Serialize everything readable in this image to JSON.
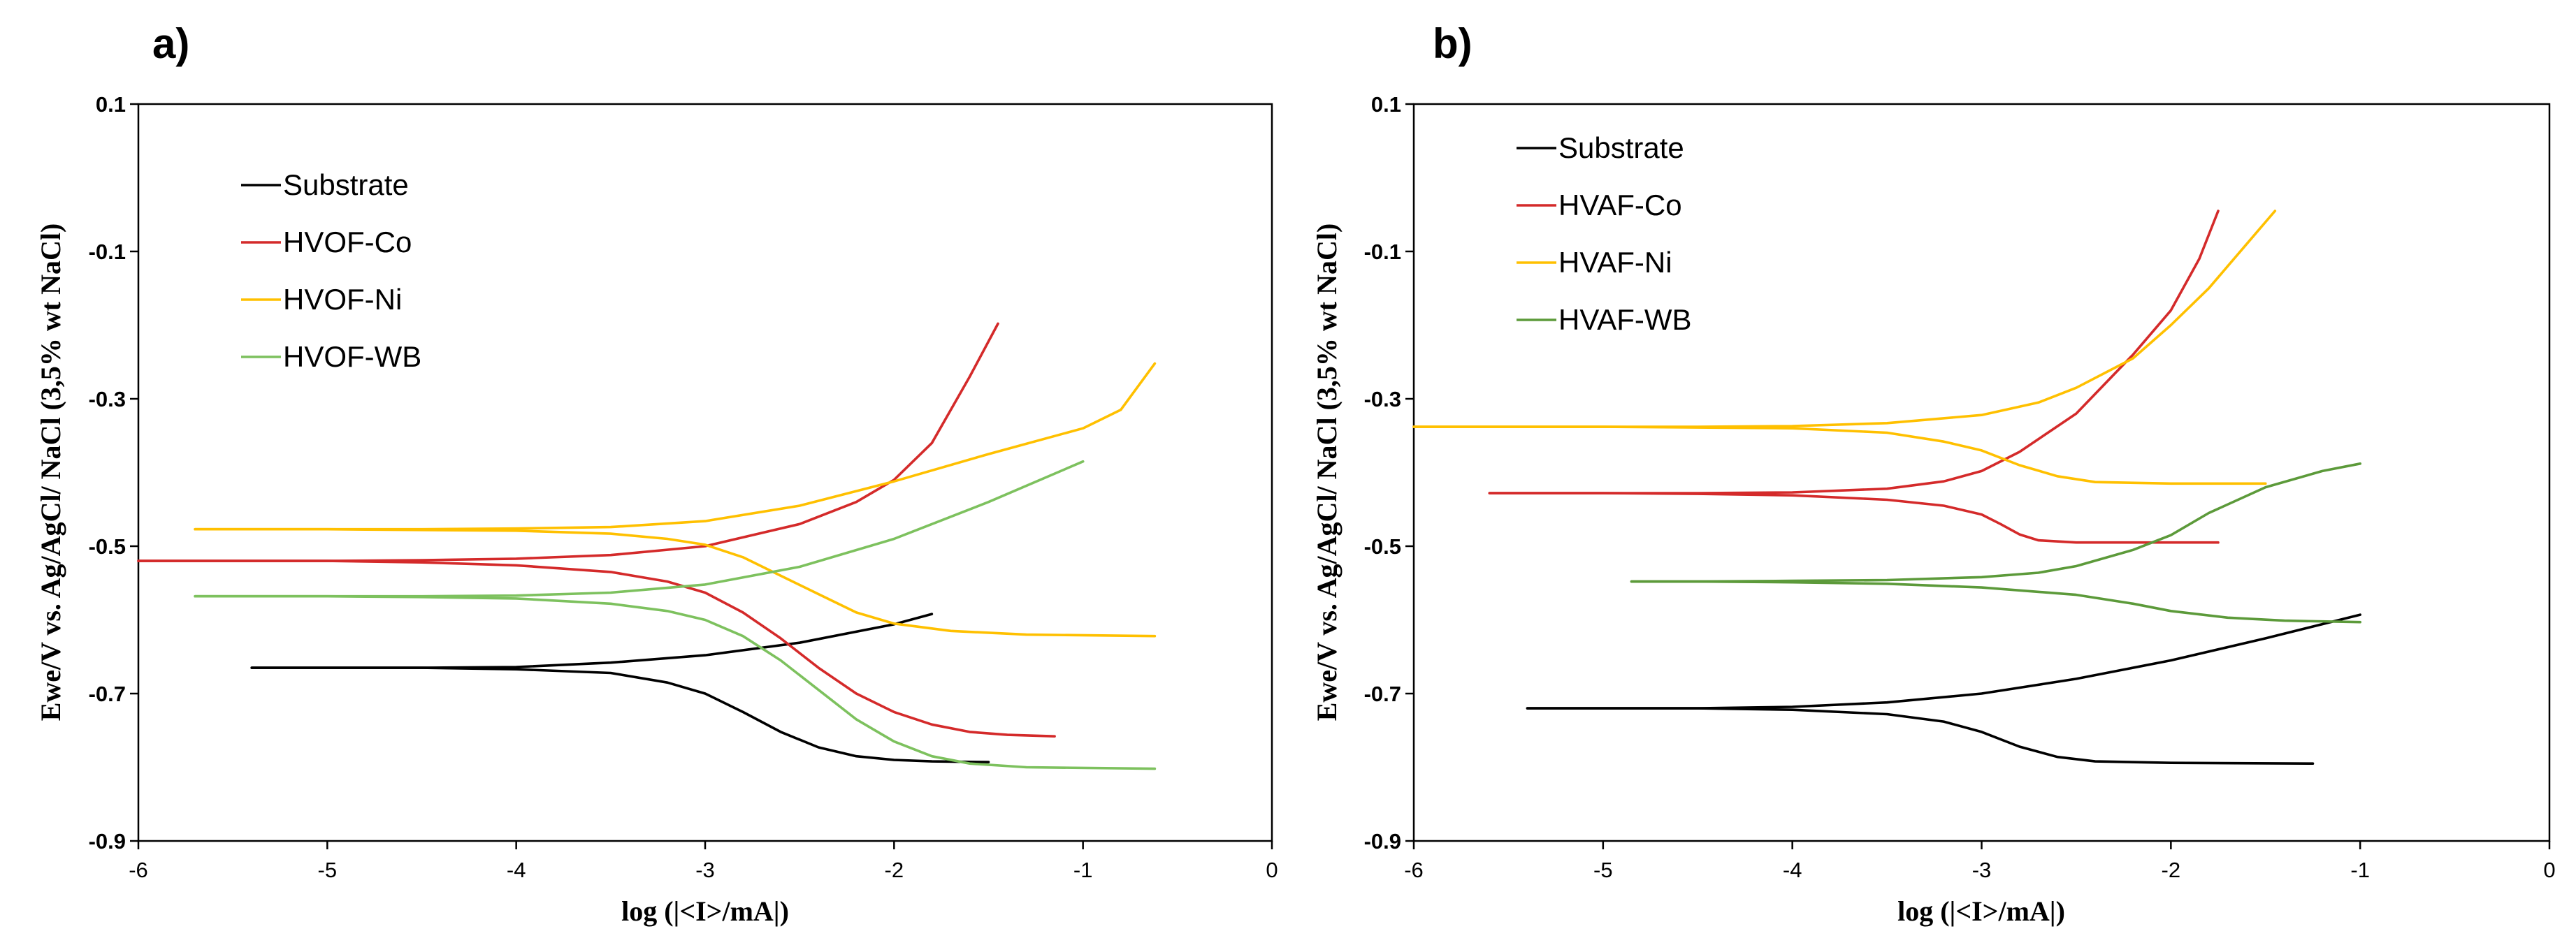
{
  "chart_data": [
    {
      "type": "line",
      "panel_label": "a)",
      "xlabel": "log (|<I>/mA|)",
      "ylabel": "Ewe/V vs. Ag/AgCl/ NaCl (3,5% wt NaCl)",
      "xlim": [
        -6,
        0
      ],
      "ylim": [
        -0.9,
        0.1
      ],
      "x_ticks": [
        "-6",
        "-5",
        "-4",
        "-3",
        "-2",
        "-1",
        "0"
      ],
      "y_ticks": [
        "0.1",
        "-0.1",
        "-0.3",
        "-0.5",
        "-0.7",
        "-0.9"
      ],
      "grid": false,
      "legend_position": "top-left",
      "series": [
        {
          "name": "Substrate",
          "color": "#000000",
          "branches": [
            [
              [
                -5.4,
                -0.665
              ],
              [
                -4.5,
                -0.665
              ],
              [
                -4.0,
                -0.664
              ],
              [
                -3.5,
                -0.658
              ],
              [
                -3.0,
                -0.648
              ],
              [
                -2.5,
                -0.631
              ],
              [
                -2.0,
                -0.606
              ],
              [
                -1.8,
                -0.592
              ]
            ],
            [
              [
                -5.4,
                -0.665
              ],
              [
                -4.5,
                -0.665
              ],
              [
                -4.0,
                -0.667
              ],
              [
                -3.5,
                -0.672
              ],
              [
                -3.2,
                -0.685
              ],
              [
                -3.0,
                -0.7
              ],
              [
                -2.8,
                -0.725
              ],
              [
                -2.6,
                -0.752
              ],
              [
                -2.4,
                -0.773
              ],
              [
                -2.2,
                -0.785
              ],
              [
                -2.0,
                -0.79
              ],
              [
                -1.8,
                -0.792
              ],
              [
                -1.5,
                -0.793
              ]
            ]
          ]
        },
        {
          "name": "HVOF-Co",
          "color": "#d42a2a",
          "branches": [
            [
              [
                -6.0,
                -0.52
              ],
              [
                -5.0,
                -0.52
              ],
              [
                -4.5,
                -0.519
              ],
              [
                -4.0,
                -0.517
              ],
              [
                -3.5,
                -0.512
              ],
              [
                -3.0,
                -0.5
              ],
              [
                -2.5,
                -0.47
              ],
              [
                -2.2,
                -0.44
              ],
              [
                -2.0,
                -0.41
              ],
              [
                -1.8,
                -0.36
              ],
              [
                -1.6,
                -0.27
              ],
              [
                -1.45,
                -0.198
              ]
            ],
            [
              [
                -6.0,
                -0.52
              ],
              [
                -5.0,
                -0.52
              ],
              [
                -4.5,
                -0.522
              ],
              [
                -4.0,
                -0.526
              ],
              [
                -3.5,
                -0.535
              ],
              [
                -3.2,
                -0.548
              ],
              [
                -3.0,
                -0.563
              ],
              [
                -2.8,
                -0.59
              ],
              [
                -2.6,
                -0.625
              ],
              [
                -2.4,
                -0.665
              ],
              [
                -2.2,
                -0.7
              ],
              [
                -2.0,
                -0.725
              ],
              [
                -1.8,
                -0.742
              ],
              [
                -1.6,
                -0.752
              ],
              [
                -1.4,
                -0.756
              ],
              [
                -1.15,
                -0.758
              ]
            ]
          ]
        },
        {
          "name": "HVOF-Ni",
          "color": "#ffc000",
          "branches": [
            [
              [
                -5.7,
                -0.477
              ],
              [
                -5.0,
                -0.477
              ],
              [
                -4.5,
                -0.477
              ],
              [
                -4.0,
                -0.476
              ],
              [
                -3.5,
                -0.474
              ],
              [
                -3.0,
                -0.466
              ],
              [
                -2.5,
                -0.445
              ],
              [
                -2.0,
                -0.412
              ],
              [
                -1.5,
                -0.375
              ],
              [
                -1.0,
                -0.34
              ],
              [
                -0.8,
                -0.315
              ],
              [
                -0.62,
                -0.252
              ]
            ],
            [
              [
                -5.7,
                -0.477
              ],
              [
                -5.0,
                -0.477
              ],
              [
                -4.5,
                -0.478
              ],
              [
                -4.0,
                -0.479
              ],
              [
                -3.5,
                -0.483
              ],
              [
                -3.2,
                -0.49
              ],
              [
                -3.0,
                -0.498
              ],
              [
                -2.8,
                -0.515
              ],
              [
                -2.6,
                -0.54
              ],
              [
                -2.4,
                -0.565
              ],
              [
                -2.2,
                -0.59
              ],
              [
                -2.0,
                -0.605
              ],
              [
                -1.7,
                -0.615
              ],
              [
                -1.3,
                -0.62
              ],
              [
                -0.62,
                -0.622
              ]
            ]
          ]
        },
        {
          "name": "HVOF-WB",
          "color": "#7dc15e",
          "branches": [
            [
              [
                -5.7,
                -0.568
              ],
              [
                -5.0,
                -0.568
              ],
              [
                -4.5,
                -0.568
              ],
              [
                -4.0,
                -0.567
              ],
              [
                -3.5,
                -0.563
              ],
              [
                -3.0,
                -0.552
              ],
              [
                -2.5,
                -0.528
              ],
              [
                -2.0,
                -0.49
              ],
              [
                -1.5,
                -0.44
              ],
              [
                -1.0,
                -0.385
              ]
            ],
            [
              [
                -5.7,
                -0.568
              ],
              [
                -5.0,
                -0.568
              ],
              [
                -4.5,
                -0.569
              ],
              [
                -4.0,
                -0.571
              ],
              [
                -3.5,
                -0.578
              ],
              [
                -3.2,
                -0.588
              ],
              [
                -3.0,
                -0.6
              ],
              [
                -2.8,
                -0.622
              ],
              [
                -2.6,
                -0.655
              ],
              [
                -2.4,
                -0.695
              ],
              [
                -2.2,
                -0.735
              ],
              [
                -2.0,
                -0.765
              ],
              [
                -1.8,
                -0.785
              ],
              [
                -1.6,
                -0.795
              ],
              [
                -1.3,
                -0.8
              ],
              [
                -0.62,
                -0.802
              ]
            ]
          ]
        }
      ]
    },
    {
      "type": "line",
      "panel_label": "b)",
      "xlabel": "log (|<I>/mA|)",
      "ylabel": "Ewe/V vs. Ag/AgCl/ NaCl (3,5% wt NaCl)",
      "xlim": [
        -6,
        0
      ],
      "ylim": [
        -0.9,
        0.1
      ],
      "x_ticks": [
        "-6",
        "-5",
        "-4",
        "-3",
        "-2",
        "-1",
        "0"
      ],
      "y_ticks": [
        "0.1",
        "-0.1",
        "-0.3",
        "-0.5",
        "-0.7",
        "-0.9"
      ],
      "grid": false,
      "legend_position": "top-left",
      "series": [
        {
          "name": "Substrate",
          "color": "#000000",
          "branches": [
            [
              [
                -5.4,
                -0.72
              ],
              [
                -4.5,
                -0.72
              ],
              [
                -4.0,
                -0.718
              ],
              [
                -3.5,
                -0.712
              ],
              [
                -3.0,
                -0.7
              ],
              [
                -2.5,
                -0.68
              ],
              [
                -2.0,
                -0.655
              ],
              [
                -1.5,
                -0.625
              ],
              [
                -1.0,
                -0.593
              ]
            ],
            [
              [
                -5.4,
                -0.72
              ],
              [
                -4.5,
                -0.72
              ],
              [
                -4.0,
                -0.722
              ],
              [
                -3.5,
                -0.728
              ],
              [
                -3.2,
                -0.738
              ],
              [
                -3.0,
                -0.752
              ],
              [
                -2.8,
                -0.772
              ],
              [
                -2.6,
                -0.786
              ],
              [
                -2.4,
                -0.792
              ],
              [
                -2.0,
                -0.794
              ],
              [
                -1.25,
                -0.795
              ]
            ]
          ]
        },
        {
          "name": "HVAF-Co",
          "color": "#d42a2a",
          "branches": [
            [
              [
                -5.6,
                -0.428
              ],
              [
                -5.0,
                -0.428
              ],
              [
                -4.5,
                -0.428
              ],
              [
                -4.0,
                -0.427
              ],
              [
                -3.5,
                -0.422
              ],
              [
                -3.2,
                -0.412
              ],
              [
                -3.0,
                -0.398
              ],
              [
                -2.8,
                -0.372
              ],
              [
                -2.5,
                -0.32
              ],
              [
                -2.2,
                -0.24
              ],
              [
                -2.0,
                -0.18
              ],
              [
                -1.85,
                -0.11
              ],
              [
                -1.75,
                -0.045
              ]
            ],
            [
              [
                -5.6,
                -0.428
              ],
              [
                -5.0,
                -0.428
              ],
              [
                -4.5,
                -0.429
              ],
              [
                -4.0,
                -0.431
              ],
              [
                -3.5,
                -0.437
              ],
              [
                -3.2,
                -0.445
              ],
              [
                -3.0,
                -0.457
              ],
              [
                -2.9,
                -0.47
              ],
              [
                -2.8,
                -0.484
              ],
              [
                -2.7,
                -0.492
              ],
              [
                -2.5,
                -0.495
              ],
              [
                -2.2,
                -0.495
              ],
              [
                -1.75,
                -0.495
              ]
            ]
          ]
        },
        {
          "name": "HVAF-Ni",
          "color": "#ffc000",
          "branches": [
            [
              [
                -6.0,
                -0.338
              ],
              [
                -5.0,
                -0.338
              ],
              [
                -4.5,
                -0.338
              ],
              [
                -4.0,
                -0.337
              ],
              [
                -3.5,
                -0.333
              ],
              [
                -3.0,
                -0.322
              ],
              [
                -2.7,
                -0.305
              ],
              [
                -2.5,
                -0.285
              ],
              [
                -2.2,
                -0.245
              ],
              [
                -2.0,
                -0.2
              ],
              [
                -1.8,
                -0.15
              ],
              [
                -1.6,
                -0.09
              ],
              [
                -1.45,
                -0.045
              ]
            ],
            [
              [
                -6.0,
                -0.338
              ],
              [
                -5.0,
                -0.338
              ],
              [
                -4.5,
                -0.339
              ],
              [
                -4.0,
                -0.34
              ],
              [
                -3.5,
                -0.346
              ],
              [
                -3.2,
                -0.358
              ],
              [
                -3.0,
                -0.37
              ],
              [
                -2.8,
                -0.39
              ],
              [
                -2.6,
                -0.405
              ],
              [
                -2.4,
                -0.413
              ],
              [
                -2.0,
                -0.415
              ],
              [
                -1.5,
                -0.415
              ]
            ]
          ]
        },
        {
          "name": "HVAF-WB",
          "color": "#5c9a3a",
          "branches": [
            [
              [
                -4.85,
                -0.548
              ],
              [
                -4.5,
                -0.548
              ],
              [
                -4.0,
                -0.547
              ],
              [
                -3.5,
                -0.546
              ],
              [
                -3.0,
                -0.542
              ],
              [
                -2.7,
                -0.536
              ],
              [
                -2.5,
                -0.527
              ],
              [
                -2.2,
                -0.505
              ],
              [
                -2.0,
                -0.485
              ],
              [
                -1.8,
                -0.455
              ],
              [
                -1.5,
                -0.42
              ],
              [
                -1.2,
                -0.398
              ],
              [
                -1.0,
                -0.388
              ]
            ],
            [
              [
                -4.85,
                -0.548
              ],
              [
                -4.5,
                -0.548
              ],
              [
                -4.0,
                -0.549
              ],
              [
                -3.5,
                -0.551
              ],
              [
                -3.0,
                -0.556
              ],
              [
                -2.5,
                -0.566
              ],
              [
                -2.2,
                -0.578
              ],
              [
                -2.0,
                -0.588
              ],
              [
                -1.7,
                -0.597
              ],
              [
                -1.4,
                -0.601
              ],
              [
                -1.0,
                -0.603
              ]
            ]
          ]
        }
      ]
    }
  ]
}
